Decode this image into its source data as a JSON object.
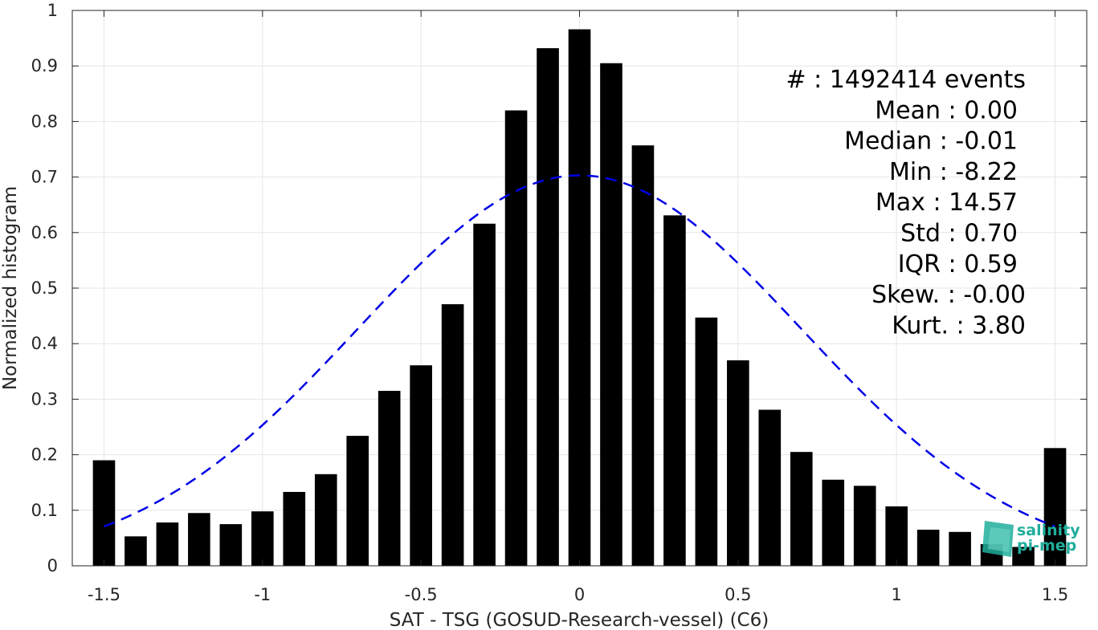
{
  "chart_data": {
    "type": "bar",
    "xlabel": "SAT - TSG (GOSUD-Research-vessel) (C6)",
    "ylabel": "Normalized histogram",
    "xlim": [
      -1.6,
      1.6
    ],
    "ylim": [
      0,
      1
    ],
    "xticks": [
      -1.5,
      -1,
      -0.5,
      0,
      0.5,
      1,
      1.5
    ],
    "xtick_labels": [
      "-1.5",
      "-1",
      "-0.5",
      "0",
      "0.5",
      "1",
      "1.5"
    ],
    "yticks": [
      0,
      0.1,
      0.2,
      0.3,
      0.4,
      0.5,
      0.6,
      0.7,
      0.8,
      0.9,
      1
    ],
    "ytick_labels": [
      "0",
      "0.1",
      "0.2",
      "0.3",
      "0.4",
      "0.5",
      "0.6",
      "0.7",
      "0.8",
      "0.9",
      "1"
    ],
    "grid": true,
    "bar_color": "#000000",
    "bars": {
      "x": [
        -1.5,
        -1.4,
        -1.3,
        -1.2,
        -1.1,
        -1.0,
        -0.9,
        -0.8,
        -0.7,
        -0.6,
        -0.5,
        -0.4,
        -0.3,
        -0.2,
        -0.1,
        0.0,
        0.1,
        0.2,
        0.3,
        0.4,
        0.5,
        0.6,
        0.7,
        0.8,
        0.9,
        1.0,
        1.1,
        1.2,
        1.3,
        1.4,
        1.5
      ],
      "values": [
        0.19,
        0.053,
        0.078,
        0.095,
        0.075,
        0.098,
        0.133,
        0.165,
        0.234,
        0.315,
        0.361,
        0.471,
        0.616,
        0.82,
        0.932,
        0.966,
        0.905,
        0.757,
        0.631,
        0.447,
        0.37,
        0.281,
        0.205,
        0.155,
        0.144,
        0.107,
        0.065,
        0.061,
        0.039,
        0.034,
        0.212
      ]
    },
    "fit_curve": {
      "type": "gaussian",
      "mean": 0.0,
      "std": 0.7,
      "peak": 0.703,
      "x_range": [
        -1.5,
        1.5
      ],
      "color": "#0000e6",
      "style": "dashed"
    },
    "stats": [
      "#  : 1492414 events",
      "Mean : 0.00",
      "Median : -0.01",
      "Min : -8.22",
      "Max : 14.57",
      "Std : 0.70",
      "IQR : 0.59",
      "Skew. : -0.00",
      "Kurt. : 3.80"
    ]
  },
  "logo": {
    "line1": "salinity",
    "line2": "pi-mep",
    "color": "#1fae9c"
  }
}
